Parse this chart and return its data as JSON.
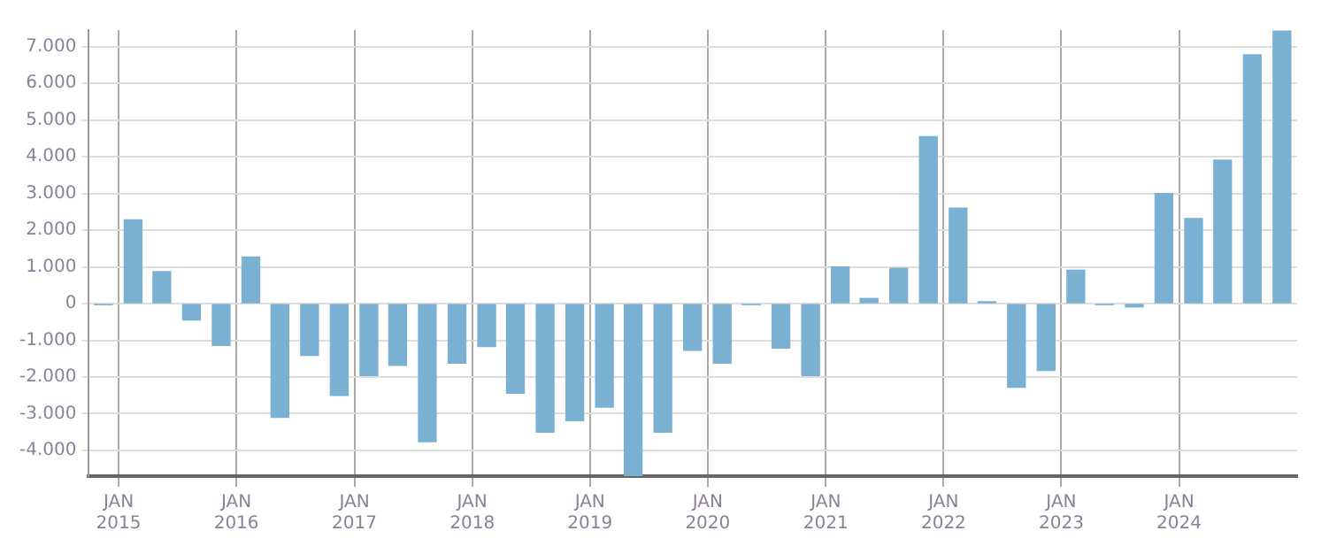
{
  "chart_data": {
    "type": "bar",
    "x": [
      "2014-11-15",
      "2015-02-15",
      "2015-05-15",
      "2015-08-15",
      "2015-11-15",
      "2016-02-15",
      "2016-05-15",
      "2016-08-15",
      "2016-11-15",
      "2017-02-15",
      "2017-05-15",
      "2017-08-15",
      "2017-11-15",
      "2018-02-15",
      "2018-05-15",
      "2018-08-15",
      "2018-11-15",
      "2019-02-15",
      "2019-05-15",
      "2019-08-15",
      "2019-11-15",
      "2020-02-15",
      "2020-05-15",
      "2020-08-15",
      "2020-11-15",
      "2021-02-15",
      "2021-05-15",
      "2021-08-15",
      "2021-11-15",
      "2022-02-15",
      "2022-05-15",
      "2022-08-15",
      "2022-11-15",
      "2023-02-15",
      "2023-05-15",
      "2023-08-15",
      "2023-11-15",
      "2024-02-15",
      "2024-05-15",
      "2024-08-15",
      "2024-11-15"
    ],
    "series": [
      {
        "color": "#7ab0d2",
        "values": [
          -30,
          2280,
          870,
          -450,
          -1140,
          1270,
          -3100,
          -1410,
          -2500,
          -1960,
          -1680,
          -3760,
          -1620,
          -1170,
          -2440,
          -3500,
          -3190,
          -2820,
          -4690,
          -3500,
          -1270,
          -1620,
          -30,
          -1210,
          -1960,
          1000,
          140,
          960,
          4550,
          2600,
          50,
          -2280,
          -1820,
          910,
          -30,
          -90,
          3000,
          2320,
          3910,
          6780,
          7420
        ]
      }
    ],
    "xlim": [
      "2014-10-01",
      "2025-01-01"
    ],
    "xticks": [
      {
        "value": "2015-01-01",
        "label": "JAN 2015"
      },
      {
        "value": "2016-01-01",
        "label": "JAN 2016"
      },
      {
        "value": "2017-01-01",
        "label": "JAN 2017"
      },
      {
        "value": "2018-01-01",
        "label": "JAN 2018"
      },
      {
        "value": "2019-01-01",
        "label": "JAN 2019"
      },
      {
        "value": "2020-01-01",
        "label": "JAN 2020"
      },
      {
        "value": "2021-01-01",
        "label": "JAN 2021"
      },
      {
        "value": "2022-01-01",
        "label": "JAN 2022"
      },
      {
        "value": "2023-01-01",
        "label": "JAN 2023"
      },
      {
        "value": "2024-01-01",
        "label": "JAN 2024"
      }
    ],
    "ylim": [
      -4700,
      7450
    ],
    "yticks": [
      {
        "value": -4000,
        "label": "-4.000"
      },
      {
        "value": -3000,
        "label": "-3.000"
      },
      {
        "value": -2000,
        "label": "-2.000"
      },
      {
        "value": -1000,
        "label": "-1.000"
      },
      {
        "value": 0,
        "label": "0"
      },
      {
        "value": 1000,
        "label": "1.000"
      },
      {
        "value": 2000,
        "label": "2.000"
      },
      {
        "value": 3000,
        "label": "3.000"
      },
      {
        "value": 4000,
        "label": "4.000"
      },
      {
        "value": 5000,
        "label": "5.000"
      },
      {
        "value": 6000,
        "label": "6.000"
      },
      {
        "value": 7000,
        "label": "7.000"
      }
    ],
    "grid": true
  }
}
